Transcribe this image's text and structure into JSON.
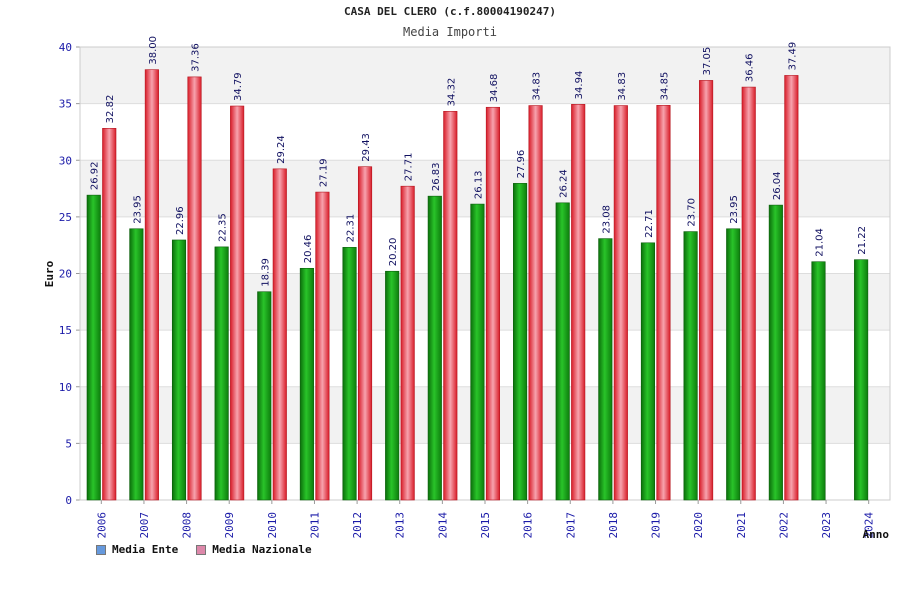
{
  "chart_data": {
    "type": "bar",
    "title": "CASA DEL CLERO (c.f.80004190247)",
    "subtitle": "Media Importi",
    "xlabel": "Anno",
    "ylabel": "Euro",
    "ylim": [
      0,
      40
    ],
    "yticks": [
      "0",
      "5",
      "10",
      "15",
      "20",
      "25",
      "30",
      "35",
      "40"
    ],
    "categories": [
      "2006",
      "2007",
      "2008",
      "2009",
      "2010",
      "2011",
      "2012",
      "2013",
      "2014",
      "2015",
      "2016",
      "2017",
      "2018",
      "2019",
      "2020",
      "2021",
      "2022",
      "2023",
      "2024"
    ],
    "series": [
      {
        "name": "Media Ente",
        "legend_color": "#6699dd",
        "bar_color": "#1aa81a",
        "values": [
          26.92,
          23.95,
          22.96,
          22.35,
          18.39,
          20.46,
          22.31,
          20.2,
          26.83,
          26.13,
          27.96,
          26.24,
          23.08,
          22.71,
          23.7,
          23.95,
          26.04,
          21.04,
          21.22
        ],
        "labels": [
          "26.92",
          "23.95",
          "22.96",
          "22.35",
          "18.39",
          "20.46",
          "22.31",
          "20.20",
          "26.83",
          "26.13",
          "27.96",
          "26.24",
          "23.08",
          "22.71",
          "23.70",
          "23.95",
          "26.04",
          "21.04",
          "21.22"
        ]
      },
      {
        "name": "Media Nazionale",
        "legend_color": "#dd88aa",
        "bar_color": "#e8333b",
        "values": [
          32.82,
          38.0,
          37.36,
          34.79,
          29.24,
          27.19,
          29.43,
          27.71,
          34.32,
          34.68,
          34.83,
          34.94,
          34.83,
          34.85,
          37.05,
          36.46,
          37.49,
          null,
          null
        ],
        "labels": [
          "32.82",
          "38.00",
          "37.36",
          "34.79",
          "29.24",
          "27.19",
          "29.43",
          "27.71",
          "34.32",
          "34.68",
          "34.83",
          "34.94",
          "34.83",
          "34.85",
          "37.05",
          "36.46",
          "37.49",
          null,
          null
        ]
      }
    ],
    "grid": true,
    "legend_position": "bottom-left"
  }
}
